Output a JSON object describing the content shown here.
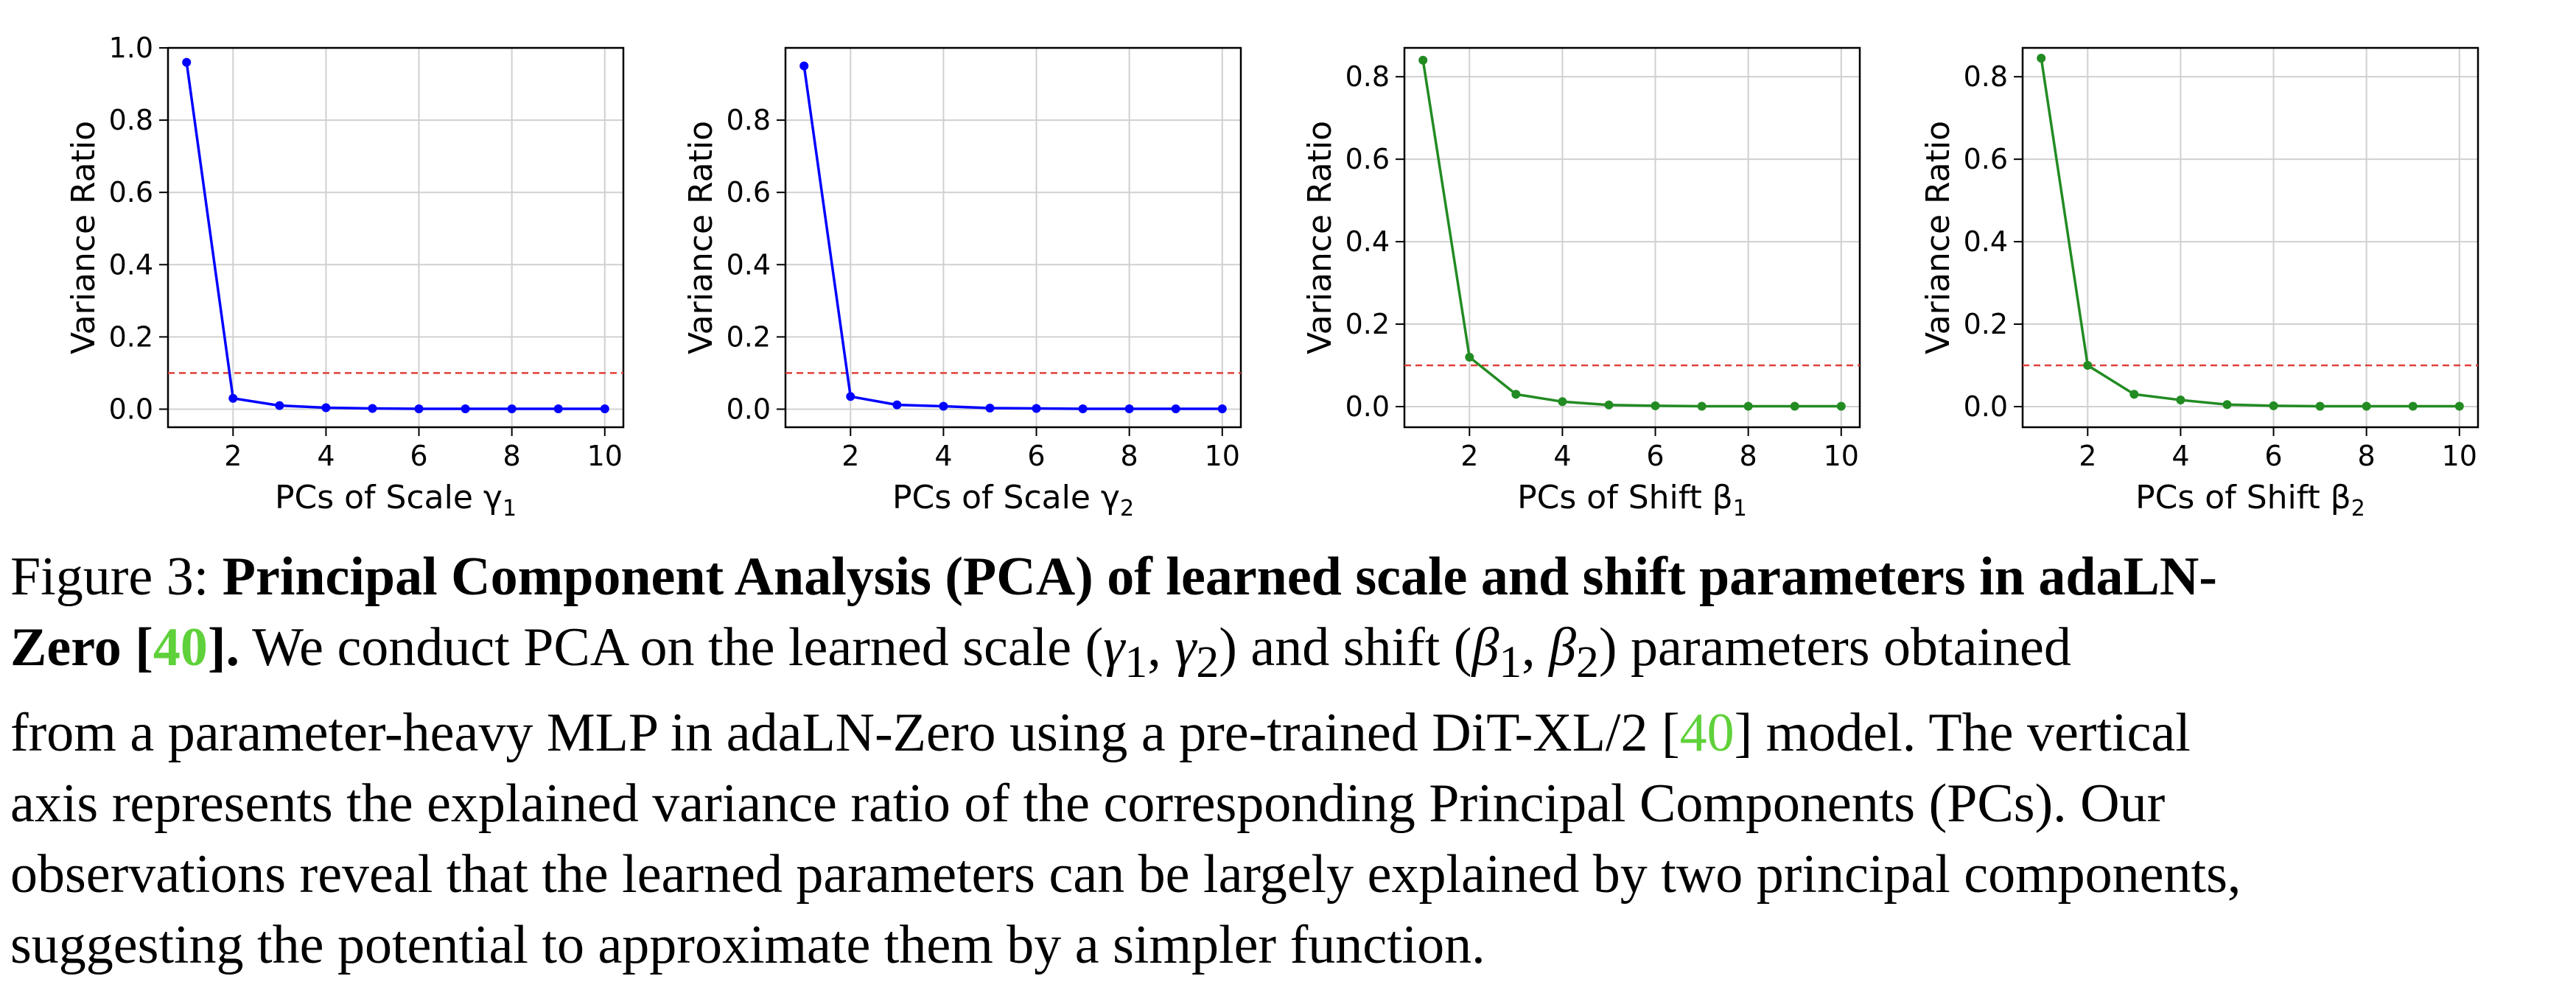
{
  "chart_data": [
    {
      "type": "line",
      "xlabel": "PCs of Scale γ",
      "xlabel_sub": "1",
      "ylabel": "Variance Ratio",
      "x": [
        1,
        2,
        3,
        4,
        5,
        6,
        7,
        8,
        9,
        10
      ],
      "series": [
        {
          "values": [
            0.96,
            0.03,
            0.01,
            0.004,
            0.002,
            0.001,
            0.001,
            0.001,
            0.001,
            0.001
          ],
          "color": "#0000ff"
        }
      ],
      "xlim": [
        0.6,
        10.4
      ],
      "ylim": [
        -0.05,
        1.0
      ],
      "xticks": [
        2,
        4,
        6,
        8,
        10
      ],
      "yticks": [
        0.0,
        0.2,
        0.4,
        0.6,
        0.8,
        1.0
      ],
      "ytick_labels": [
        "0.0",
        "0.2",
        "0.4",
        "0.6",
        "0.8",
        "1.0"
      ],
      "threshold": 0.1,
      "threshold_color": "#e0403a",
      "grid": true
    },
    {
      "type": "line",
      "xlabel": "PCs of Scale γ",
      "xlabel_sub": "2",
      "ylabel": "Variance Ratio",
      "x": [
        1,
        2,
        3,
        4,
        5,
        6,
        7,
        8,
        9,
        10
      ],
      "series": [
        {
          "values": [
            0.95,
            0.035,
            0.012,
            0.008,
            0.003,
            0.002,
            0.001,
            0.001,
            0.001,
            0.001
          ],
          "color": "#0000ff"
        }
      ],
      "xlim": [
        0.6,
        10.4
      ],
      "ylim": [
        -0.05,
        1.0
      ],
      "xticks": [
        2,
        4,
        6,
        8,
        10
      ],
      "yticks": [
        0.0,
        0.2,
        0.4,
        0.6,
        0.8
      ],
      "ytick_labels": [
        "0.0",
        "0.2",
        "0.4",
        "0.6",
        "0.8"
      ],
      "threshold": 0.1,
      "threshold_color": "#e0403a",
      "grid": true
    },
    {
      "type": "line",
      "xlabel": "PCs of Shift β",
      "xlabel_sub": "1",
      "ylabel": "Variance Ratio",
      "x": [
        1,
        2,
        3,
        4,
        5,
        6,
        7,
        8,
        9,
        10
      ],
      "series": [
        {
          "values": [
            0.84,
            0.12,
            0.03,
            0.012,
            0.004,
            0.002,
            0.001,
            0.001,
            0.001,
            0.001
          ],
          "color": "#228b22"
        }
      ],
      "xlim": [
        0.6,
        10.4
      ],
      "ylim": [
        -0.05,
        0.87
      ],
      "xticks": [
        2,
        4,
        6,
        8,
        10
      ],
      "yticks": [
        0.0,
        0.2,
        0.4,
        0.6,
        0.8
      ],
      "ytick_labels": [
        "0.0",
        "0.2",
        "0.4",
        "0.6",
        "0.8"
      ],
      "threshold": 0.1,
      "threshold_color": "#e0403a",
      "grid": true
    },
    {
      "type": "line",
      "xlabel": "PCs of Shift β",
      "xlabel_sub": "2",
      "ylabel": "Variance Ratio",
      "x": [
        1,
        2,
        3,
        4,
        5,
        6,
        7,
        8,
        9,
        10
      ],
      "series": [
        {
          "values": [
            0.845,
            0.1,
            0.03,
            0.016,
            0.005,
            0.002,
            0.001,
            0.001,
            0.001,
            0.001
          ],
          "color": "#228b22"
        }
      ],
      "xlim": [
        0.6,
        10.4
      ],
      "ylim": [
        -0.05,
        0.87
      ],
      "xticks": [
        2,
        4,
        6,
        8,
        10
      ],
      "yticks": [
        0.0,
        0.2,
        0.4,
        0.6,
        0.8
      ],
      "ytick_labels": [
        "0.0",
        "0.2",
        "0.4",
        "0.6",
        "0.8"
      ],
      "threshold": 0.1,
      "threshold_color": "#e0403a",
      "grid": true
    }
  ],
  "caption": {
    "line1_label": "Figure 3: ",
    "line1_bold": "Principal Component Analysis (PCA) of learned scale and shift parameters in adaLN-",
    "line2_bold_a": "Zero [",
    "ref": "40",
    "line2_bold_b": "].",
    "line2_text_a": " We conduct PCA on the learned scale (",
    "gamma1": "γ",
    "sub1": "1",
    "comma1": ", ",
    "gamma2": "γ",
    "sub2": "2",
    "line2_text_b": ") and shift (",
    "beta1": "β",
    "sub3": "1",
    "comma2": ", ",
    "beta2": "β",
    "sub4": "2",
    "line2_text_c": ") parameters obtained",
    "line3_text_a": "from a parameter-heavy MLP in adaLN-Zero using a pre-trained DiT-XL/2 [",
    "ref2": "40",
    "line3_text_b": "] model. The vertical",
    "line4": "axis represents the explained variance ratio of the corresponding Principal Components (PCs). Our",
    "line5": "observations reveal that the learned parameters can be largely explained by two principal components,",
    "line6": "suggesting the potential to approximate them by a simpler function."
  }
}
